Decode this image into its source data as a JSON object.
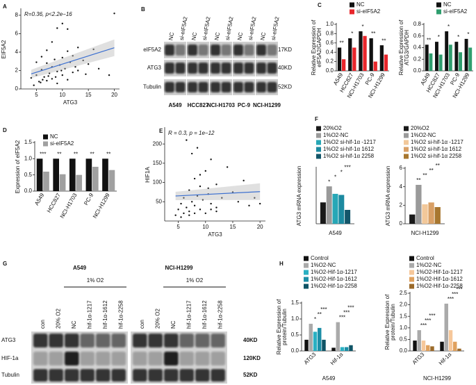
{
  "figure": {
    "blot_b": {
      "panel": "B",
      "groups": [
        "A549",
        "HCC827",
        "NCI-H1703",
        "PC-9",
        "NCI-H1299"
      ],
      "lanes": [
        "NC",
        "si-eIF5A2"
      ],
      "rows": [
        "eIF5A2",
        "ATG3",
        "Tubulin"
      ],
      "sizes": [
        "17KD",
        "40KD",
        "52KD"
      ]
    },
    "blot_g": {
      "panel": "G",
      "groups": [
        "A549",
        "NCI-H1299"
      ],
      "condition": "1% O2",
      "lanes": [
        "con",
        "20% O2",
        "NC",
        "hif-1α-1217",
        "hif-1α-1612",
        "hif-1α-2258"
      ],
      "rows": [
        "ATG3",
        "HIF-1a",
        "Tubulin"
      ],
      "sizes": [
        "40KD",
        "120KD",
        "52KD"
      ]
    }
  },
  "chart_data": [
    {
      "type": "scatter",
      "panel": "A",
      "annotation": "R=0.36, p<2.2e−16",
      "xlabel": "ATG3",
      "ylabel": "EIF5A2",
      "color": "#111111",
      "fit_color": "#3b6fd0",
      "x": [
        4,
        5,
        5.5,
        6,
        6.5,
        7,
        7,
        7.5,
        8,
        8,
        8.5,
        9,
        9,
        9.5,
        10,
        10,
        10.5,
        11,
        11,
        11.5,
        12,
        12,
        12.5,
        13,
        13,
        14,
        14.5,
        15,
        16,
        17,
        19,
        20,
        6,
        7,
        8,
        5,
        9,
        11,
        10,
        4.5,
        6.2,
        7.3,
        8.7,
        9.8,
        5.8
      ],
      "values": [
        1.2,
        1.5,
        0.8,
        2.1,
        1.3,
        2.8,
        0.9,
        1.7,
        2.4,
        1.1,
        3.2,
        1.9,
        0.6,
        2.6,
        3.4,
        1.5,
        2.2,
        4.1,
        1.0,
        2.9,
        3.6,
        1.8,
        2.4,
        4.5,
        2.0,
        3.1,
        1.6,
        2.7,
        4.3,
        2.2,
        1.5,
        8.2,
        3.5,
        4.2,
        5.1,
        2.9,
        6.6,
        6.5,
        7.1,
        0.4,
        1.0,
        1.4,
        1.3,
        2.0,
        0.7
      ],
      "xlim": [
        2,
        21
      ],
      "xticks": [
        5,
        10,
        15,
        20
      ],
      "ylim": [
        0,
        8.6
      ],
      "yticks": [
        0,
        2,
        4,
        6,
        8
      ]
    },
    {
      "type": "bar",
      "panel": "C",
      "ylabel": [
        "Relative Expression of",
        "eIF5A2/GAPDH"
      ],
      "categories": [
        "A549",
        "HCC827",
        "NCI-H1703",
        "PC-9",
        "NCI-H1299"
      ],
      "series": [
        {
          "name": "NC",
          "color": "#111111",
          "values": [
            0.5,
            0.7,
            0.85,
            0.7,
            0.55
          ]
        },
        {
          "name": "si-eIF5A2",
          "color": "#e8262b",
          "values": [
            0.25,
            0.5,
            0.75,
            0.2,
            0.35
          ]
        }
      ],
      "ylim": [
        0,
        1.0
      ],
      "yticks": [
        {
          "value": 0,
          "label": "0.0"
        },
        0.2,
        0.4,
        0.6,
        0.8,
        {
          "value": 1,
          "label": "1.0"
        }
      ],
      "annotations": [
        "**",
        "*",
        "*",
        "**",
        "**"
      ]
    },
    {
      "type": "bar",
      "ylabel": [
        "Relative Expression of",
        "ATG3/GAPDH"
      ],
      "categories": [
        "A549",
        "HCC827",
        "NCI-H1703",
        "PC-9",
        "NCI-H1299"
      ],
      "series": [
        {
          "name": "NC",
          "color": "#111111",
          "values": [
            0.45,
            0.5,
            0.68,
            0.5,
            0.55
          ]
        },
        {
          "name": "si-eIF5A2",
          "color": "#2e9e6e",
          "values": [
            0.3,
            0.28,
            0.45,
            0.32,
            0.4
          ]
        }
      ],
      "ylim": [
        0,
        0.8
      ],
      "yticks": [
        {
          "value": 0,
          "label": "0.0"
        },
        0.2,
        0.4,
        0.6,
        0.8
      ],
      "annotations": [
        "**",
        "*",
        "*",
        "*",
        "*"
      ]
    },
    {
      "type": "bar",
      "panel": "D",
      "ylabel": [
        "Expression of eIF5A2"
      ],
      "categories": [
        "A549",
        "HCC827",
        "NCI-H1703",
        "PC-9",
        "NCI-H1299"
      ],
      "series": [
        {
          "name": "NC",
          "color": "#111111",
          "values": [
            1.0,
            1.0,
            1.0,
            1.0,
            1.0
          ]
        },
        {
          "name": "si-eIF5A2",
          "color": "#a0a0a0",
          "values": [
            0.6,
            0.52,
            0.5,
            0.75,
            0.65
          ]
        }
      ],
      "ylim": [
        0,
        1.5
      ],
      "yticks": [
        {
          "value": 0,
          "label": "0.0"
        },
        0.5,
        {
          "value": 1,
          "label": "1.0"
        },
        1.5
      ],
      "annotations": [
        "***",
        "**",
        "**",
        "**",
        "**"
      ]
    },
    {
      "type": "scatter",
      "panel": "E",
      "annotation": "R = 0.3, p = 1e−12",
      "xlabel": "ATG3",
      "ylabel": "HIF1A",
      "color": "#111111",
      "fit_color": "#3b6fd0",
      "x": [
        4.5,
        5,
        5.5,
        6,
        6,
        6.5,
        7,
        7,
        7.5,
        8,
        8,
        8.5,
        9,
        9,
        9.5,
        10,
        10,
        10.5,
        11,
        11,
        12,
        12,
        13,
        14,
        15,
        16,
        17,
        18,
        19,
        20,
        6.5,
        7.5,
        8.5,
        9,
        10.5,
        12,
        5.5,
        7,
        8,
        11
      ],
      "values": [
        15,
        30,
        45,
        20,
        60,
        35,
        25,
        80,
        50,
        40,
        110,
        65,
        30,
        90,
        55,
        20,
        130,
        70,
        45,
        160,
        35,
        95,
        60,
        140,
        75,
        50,
        105,
        40,
        60,
        45,
        210,
        175,
        190,
        120,
        85,
        25,
        10,
        15,
        20,
        30
      ],
      "xlim": [
        2.5,
        21
      ],
      "xticks": [
        5,
        10,
        15,
        20
      ],
      "ylim": [
        0,
        240
      ],
      "yticks": [
        50,
        100,
        150,
        200
      ]
    },
    {
      "type": "bar",
      "panel": "F",
      "ylabel": [
        "ATG3 mRNA expression"
      ],
      "xlabel": "A549",
      "categories": [
        null
      ],
      "series": [
        {
          "name": "20%O2",
          "color": "#1a1a1a",
          "values": [
            1.0
          ]
        },
        {
          "name": "1%O2-NC",
          "color": "#9a9a9a",
          "values": [
            1.75
          ]
        },
        {
          "name": "1%O2 si-hif-1α -1217",
          "color": "#27a7b6",
          "values": [
            1.4
          ]
        },
        {
          "name": "1%O2 si-hif-1α 1612",
          "color": "#1c8aa0",
          "values": [
            1.35
          ]
        },
        {
          "name": "1%O2  si-hif-1α 2258",
          "color": "#14566a",
          "values": [
            0.65
          ]
        }
      ],
      "ylim": [
        0,
        2.6
      ],
      "annotations": [
        "*",
        "*",
        "*",
        "***"
      ]
    },
    {
      "type": "bar",
      "ylabel": [
        "ATG3 mRNA expression"
      ],
      "xlabel": "NCI-H1299",
      "categories": [
        null
      ],
      "series": [
        {
          "name": "20%O2",
          "color": "#1a1a1a",
          "values": [
            1.0
          ]
        },
        {
          "name": "1%O2-NC",
          "color": "#9a9a9a",
          "values": [
            4.2
          ]
        },
        {
          "name": "1%O2 si-hif-1α -1217",
          "color": "#f2c89a",
          "values": [
            2.1
          ]
        },
        {
          "name": "1%O2 si-hif-1α 1612",
          "color": "#d9a066",
          "values": [
            2.3
          ]
        },
        {
          "name": "1%O2  si-hif-1α 2258",
          "color": "#a8772f",
          "values": [
            1.8
          ]
        }
      ],
      "ylim": [
        0,
        6
      ],
      "yticks": [
        0,
        2,
        4,
        6
      ],
      "annotations": [
        "**",
        "**",
        "**",
        "**"
      ]
    },
    {
      "type": "bar",
      "panel": "H",
      "ylabel": [
        "Relative Expression of",
        "protein/Tubulin"
      ],
      "xlabel": "A549",
      "categories": [
        "ATG3",
        "Hif-1α"
      ],
      "series": [
        {
          "name": "Control",
          "color": "#111111",
          "values": [
            0.35,
            0.1
          ]
        },
        {
          "name": "1%O2-NC",
          "color": "#aaaaaa",
          "values": [
            0.85,
            0.9
          ]
        },
        {
          "name": "1%O2-Hif-1α-1217",
          "color": "#2ab0c2",
          "values": [
            0.6,
            0.12
          ]
        },
        {
          "name": "1%O2-Hif-1α-1612",
          "color": "#1c8ea6",
          "values": [
            0.72,
            0.12
          ]
        },
        {
          "name": "1%O2-Hif-1α-2258",
          "color": "#0f5466",
          "values": [
            0.35,
            0.18
          ]
        }
      ],
      "ylim": [
        0,
        1.5
      ],
      "yticks": [
        {
          "value": 0,
          "label": "0.0"
        },
        0.5,
        {
          "value": 1,
          "label": "1.0"
        },
        1.5
      ],
      "annotations": [
        "*",
        "**",
        "***",
        "***",
        "***",
        "***"
      ]
    },
    {
      "type": "bar",
      "ylabel": [
        "Relative Expression of",
        "protein/Tubulin"
      ],
      "xlabel": "NCI-H1299",
      "categories": [
        "ATG3",
        "Hif-1α"
      ],
      "series": [
        {
          "name": "Control",
          "color": "#111111",
          "values": [
            0.45,
            0.4
          ]
        },
        {
          "name": "1%O2-NC",
          "color": "#aaaaaa",
          "values": [
            0.9,
            2.05
          ]
        },
        {
          "name": "1%O2-Hif-1α-1217",
          "color": "#f6c79a",
          "values": [
            0.45,
            0.9
          ]
        },
        {
          "name": "1%O2-Hif-1α-1612",
          "color": "#e0a15e",
          "values": [
            0.25,
            0.4
          ]
        },
        {
          "name": "1%O2-Hif-1α-2258",
          "color": "#9b6a2a",
          "values": [
            0.2,
            0.1
          ]
        }
      ],
      "ylim": [
        0,
        2.5
      ],
      "yticks": [
        {
          "value": 0,
          "label": "0.0"
        },
        0.5,
        {
          "value": 1,
          "label": "1.0"
        },
        1.5,
        {
          "value": 2,
          "label": "2.0"
        },
        2.5
      ],
      "annotations": [
        "***",
        "***",
        "***",
        "***",
        "***",
        "***"
      ]
    }
  ]
}
